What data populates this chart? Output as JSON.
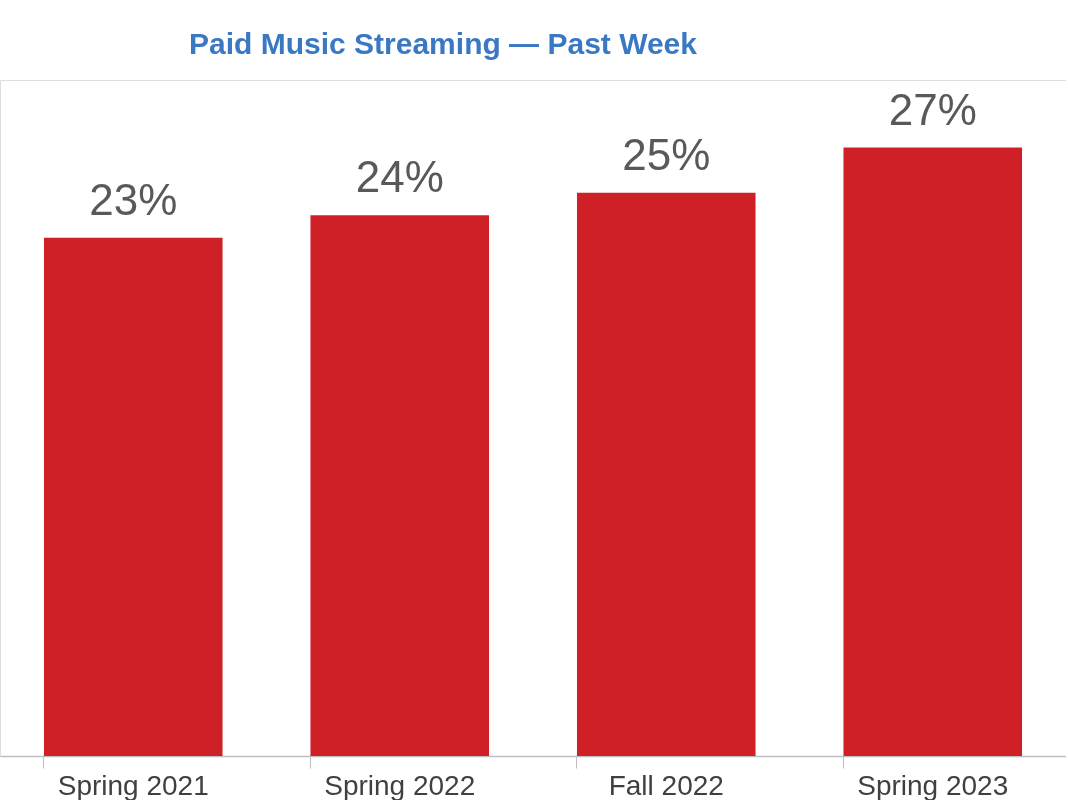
{
  "chart_data": {
    "type": "bar",
    "title": "Paid Music Streaming — Past Week",
    "categories": [
      "Spring 2021",
      "Spring 2022",
      "Fall 2022",
      "Spring 2023"
    ],
    "values": [
      23,
      24,
      25,
      27
    ],
    "value_labels": [
      "23%",
      "24%",
      "25%",
      "27%"
    ],
    "color": "#cf2027",
    "ylim": [
      0,
      30
    ],
    "tick_labels": "x"
  }
}
